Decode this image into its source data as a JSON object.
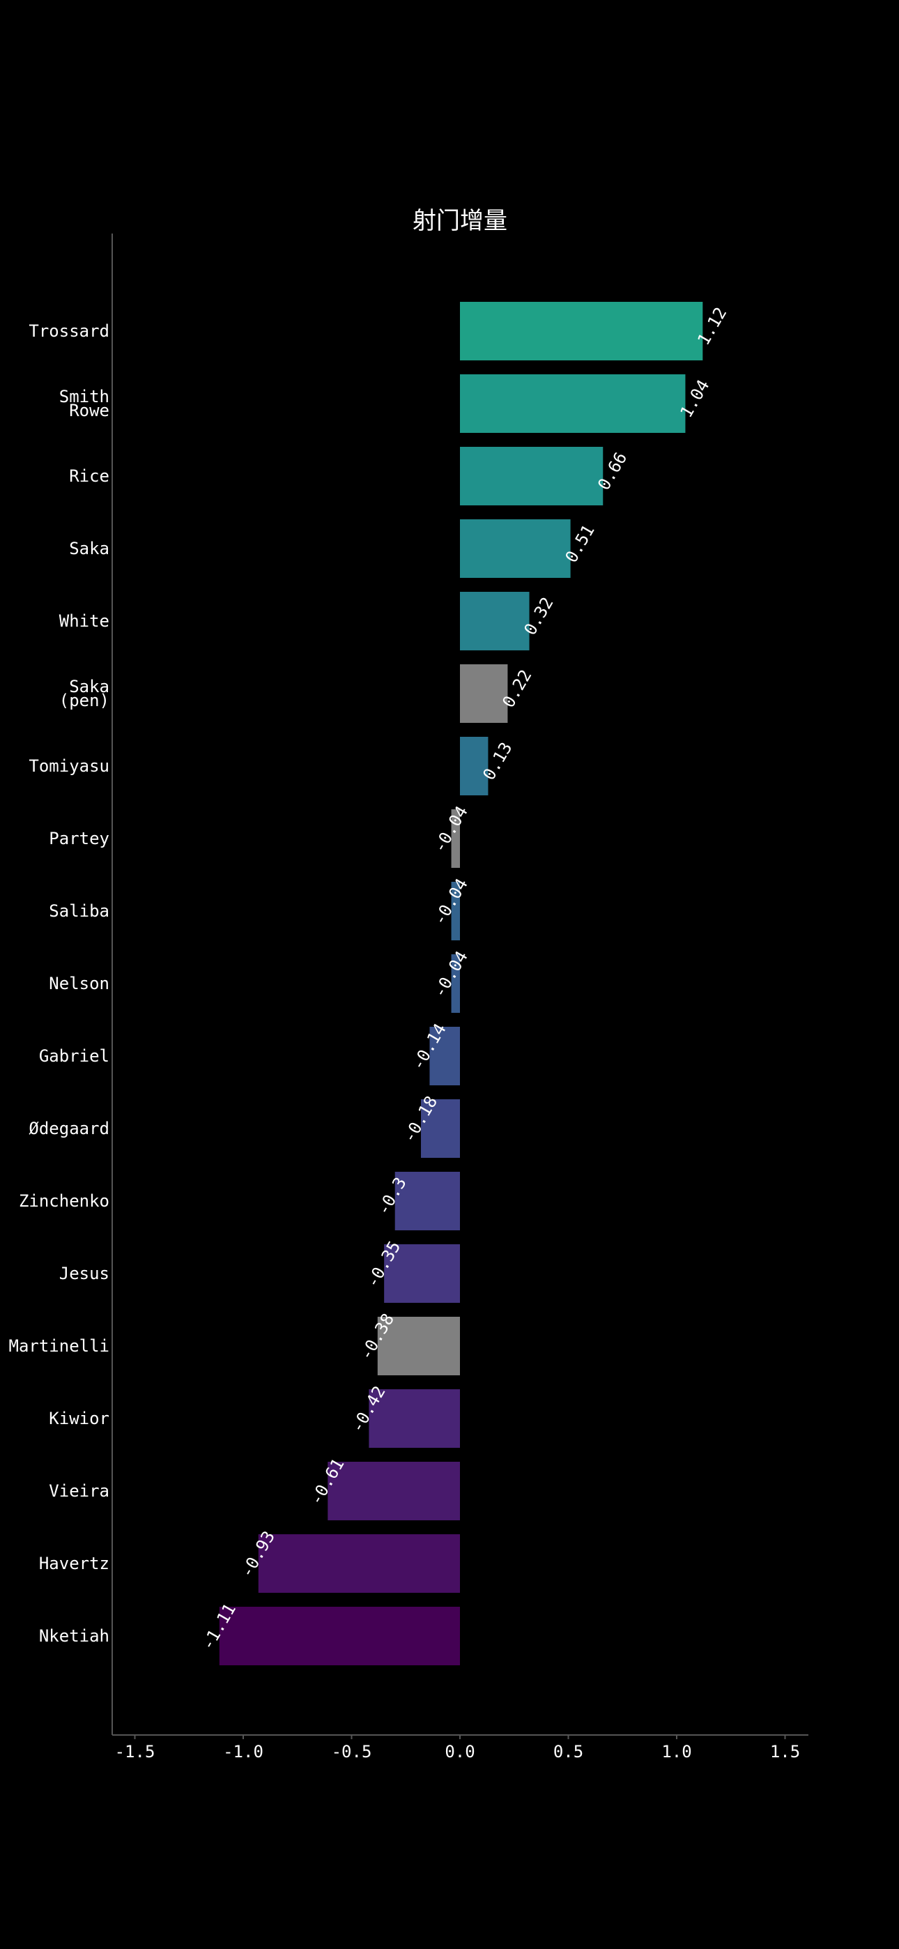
{
  "chart_data": {
    "type": "bar",
    "orientation": "horizontal",
    "title": "射门增量",
    "xlabel": "",
    "ylabel": "",
    "xlim": [
      -1.6,
      1.6
    ],
    "x_ticks": [
      "-1.5",
      "-1.0",
      "-0.5",
      "0.0",
      "0.5",
      "1.0",
      "1.5"
    ],
    "x_tick_values": [
      -1.5,
      -1.0,
      -0.5,
      0.0,
      0.5,
      1.0,
      1.5
    ],
    "grid": false,
    "legend": "none",
    "highlight_color": "#808080",
    "bars": [
      {
        "label": [
          "Trossard"
        ],
        "value": 1.12,
        "value_label": "1.12",
        "color": "#1fa187"
      },
      {
        "label": [
          "Smith",
          "Rowe"
        ],
        "value": 1.04,
        "value_label": "1.04",
        "color": "#1f9a8a"
      },
      {
        "label": [
          "Rice"
        ],
        "value": 0.66,
        "value_label": "0.66",
        "color": "#20928c"
      },
      {
        "label": [
          "Saka"
        ],
        "value": 0.51,
        "value_label": "0.51",
        "color": "#238a8d"
      },
      {
        "label": [
          "White"
        ],
        "value": 0.32,
        "value_label": "0.32",
        "color": "#26828e"
      },
      {
        "label": [
          "Saka",
          "(pen)"
        ],
        "value": 0.22,
        "value_label": "0.22",
        "color": "#808080"
      },
      {
        "label": [
          "Tomiyasu"
        ],
        "value": 0.13,
        "value_label": "0.13",
        "color": "#2c728e"
      },
      {
        "label": [
          "Partey"
        ],
        "value": -0.04,
        "value_label": "-0.04",
        "color": "#808080"
      },
      {
        "label": [
          "Saliba"
        ],
        "value": -0.04,
        "value_label": "-0.04",
        "color": "#33638d"
      },
      {
        "label": [
          "Nelson"
        ],
        "value": -0.04,
        "value_label": "-0.04",
        "color": "#375b8d"
      },
      {
        "label": [
          "Gabriel"
        ],
        "value": -0.14,
        "value_label": "-0.14",
        "color": "#3b528b"
      },
      {
        "label": [
          "Ødegaard"
        ],
        "value": -0.18,
        "value_label": "-0.18",
        "color": "#3f4889"
      },
      {
        "label": [
          "Zinchenko"
        ],
        "value": -0.3,
        "value_label": "-0.3",
        "color": "#424086"
      },
      {
        "label": [
          "Jesus"
        ],
        "value": -0.35,
        "value_label": "-0.35",
        "color": "#453781"
      },
      {
        "label": [
          "Martinelli"
        ],
        "value": -0.38,
        "value_label": "-0.38",
        "color": "#808080"
      },
      {
        "label": [
          "Kiwior"
        ],
        "value": -0.42,
        "value_label": "-0.42",
        "color": "#482475"
      },
      {
        "label": [
          "Vieira"
        ],
        "value": -0.61,
        "value_label": "-0.61",
        "color": "#481a6c"
      },
      {
        "label": [
          "Havertz"
        ],
        "value": -0.93,
        "value_label": "-0.93",
        "color": "#470f62"
      },
      {
        "label": [
          "Nketiah"
        ],
        "value": -1.11,
        "value_label": "-1.11",
        "color": "#440154"
      }
    ]
  }
}
